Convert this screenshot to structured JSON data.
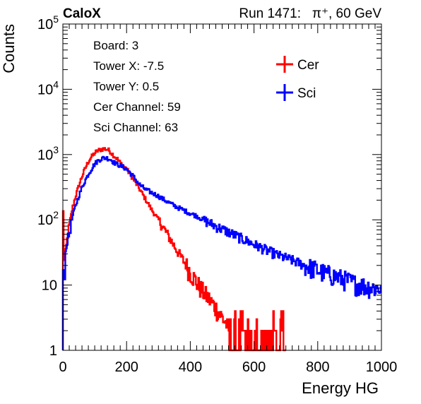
{
  "chart_data": {
    "type": "line",
    "label_left": "CaloX",
    "label_right": "Run 1471:   π⁺, 60 GeV",
    "xlabel": "Energy HG",
    "ylabel": "Counts",
    "xlim": [
      0,
      1000
    ],
    "ylim": [
      1,
      100000
    ],
    "log_y": true,
    "grid": false,
    "x_ticks": [
      0,
      200,
      400,
      600,
      800,
      1000
    ],
    "y_tick_labels": [
      {
        "value": 1,
        "base": "1",
        "exp": ""
      },
      {
        "value": 10,
        "base": "10",
        "exp": ""
      },
      {
        "value": 100,
        "base": "10",
        "exp": "2"
      },
      {
        "value": 1000,
        "base": "10",
        "exp": "3"
      },
      {
        "value": 10000,
        "base": "10",
        "exp": "4"
      },
      {
        "value": 100000,
        "base": "10",
        "exp": "5"
      }
    ],
    "info_box": [
      "Board: 3",
      "Tower X: -7.5",
      "Tower Y: 0.5",
      "Cer Channel: 59",
      "Sci Channel: 63"
    ],
    "legend_position": "top-right",
    "series": [
      {
        "name": "Cer",
        "color": "#ff0000",
        "x": [
          0,
          5,
          10,
          15,
          20,
          25,
          30,
          40,
          50,
          60,
          70,
          80,
          90,
          100,
          110,
          120,
          130,
          140,
          150,
          160,
          170,
          180,
          200,
          220,
          240,
          260,
          280,
          300,
          320,
          340,
          360,
          380,
          400,
          420,
          440,
          460,
          480,
          500,
          520,
          540,
          560,
          580,
          600,
          620,
          640,
          660,
          680,
          700
        ],
        "y": [
          250,
          20,
          35,
          55,
          80,
          110,
          150,
          230,
          330,
          460,
          610,
          780,
          920,
          1050,
          1150,
          1200,
          1230,
          1200,
          1100,
          960,
          870,
          750,
          600,
          430,
          300,
          205,
          140,
          100,
          70,
          48,
          33,
          23,
          16,
          11,
          8,
          6,
          4.5,
          3.2,
          2.3,
          1.7,
          1.3,
          1.1,
          1,
          1,
          1,
          1,
          1,
          1
        ]
      },
      {
        "name": "Sci",
        "color": "#0000ff",
        "x": [
          0,
          5,
          10,
          15,
          20,
          25,
          30,
          40,
          50,
          60,
          70,
          80,
          90,
          100,
          110,
          120,
          130,
          140,
          150,
          160,
          170,
          180,
          200,
          220,
          240,
          260,
          280,
          300,
          320,
          340,
          360,
          380,
          400,
          420,
          440,
          460,
          480,
          500,
          520,
          540,
          560,
          580,
          600,
          620,
          640,
          660,
          680,
          700,
          720,
          740,
          760,
          780,
          800,
          820,
          840,
          860,
          880,
          900,
          920,
          940,
          960,
          980,
          1000
        ],
        "y": [
          13,
          14,
          40,
          50,
          60,
          80,
          110,
          165,
          230,
          310,
          400,
          500,
          600,
          720,
          800,
          860,
          890,
          880,
          840,
          760,
          710,
          680,
          600,
          470,
          350,
          290,
          260,
          230,
          200,
          175,
          155,
          140,
          125,
          115,
          100,
          90,
          80,
          72,
          65,
          58,
          52,
          47,
          42,
          38,
          34,
          31,
          28,
          26,
          24,
          22,
          20,
          18.5,
          17,
          15.5,
          14.5,
          13.5,
          12.5,
          11.5,
          10.5,
          10,
          9.5,
          9,
          9
        ]
      }
    ]
  }
}
